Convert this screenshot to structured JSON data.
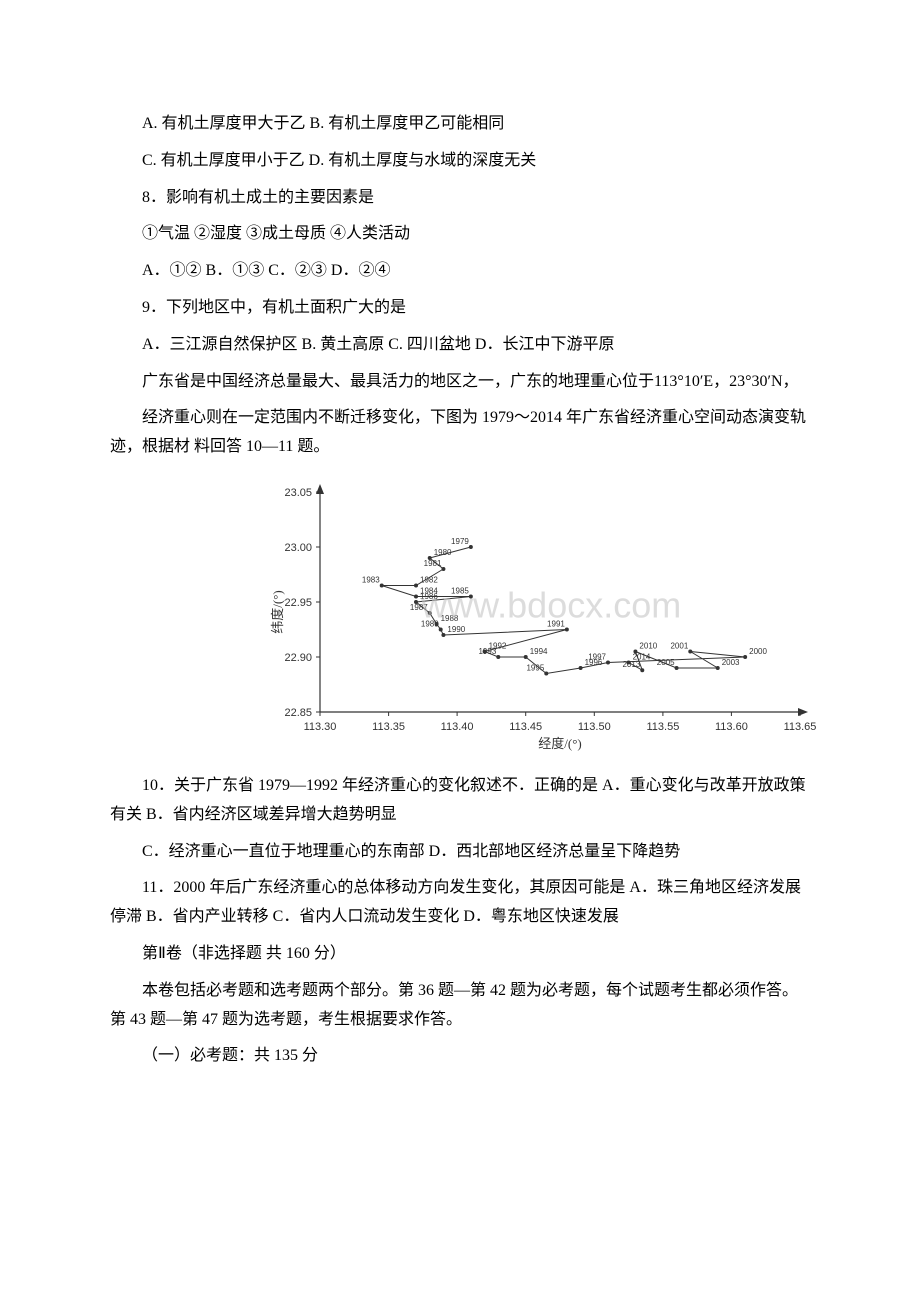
{
  "paragraphs": {
    "p1": "A. 有机土厚度甲大于乙 B. 有机土厚度甲乙可能相同",
    "p2": "C. 有机土厚度甲小于乙 D. 有机土厚度与水域的深度无关",
    "p3": "8．影响有机土成土的主要因素是",
    "p4": "①气温 ②湿度 ③成土母质 ④人类活动",
    "p5": "A．①② B．①③ C．②③ D．②④",
    "p6": "9．下列地区中，有机土面积广大的是",
    "p7": "A．三江源自然保护区 B. 黄土高原 C. 四川盆地 D．长江中下游平原",
    "p8": "广东省是中国经济总量最大、最具活力的地区之一，广东的地理重心位于113°10′E，23°30′N，",
    "p9": "经济重心则在一定范围内不断迁移变化，下图为 1979～2014 年广东省经济重心空间动态演变轨迹，根据材 料回答 10—11 题。",
    "p10": "10．关于广东省 1979—1992 年经济重心的变化叙述不．正确的是 A．重心变化与改革开放政策有关 B．省内经济区域差异增大趋势明显",
    "p11": "C．经济重心一直位于地理重心的东南部 D．西北部地区经济总量呈下降趋势",
    "p12": "11．2000 年后广东经济重心的总体移动方向发生变化，其原因可能是 A．珠三角地区经济发展停滞 B．省内产业转移 C．省内人口流动发生变化 D．粤东地区快速发展",
    "p13": "第Ⅱ卷（非选择题 共 160 分）",
    "p14": "本卷包括必考题和选考题两个部分。第 36 题—第 42 题为必考题，每个试题考生都必须作答。第 43 题—第 47 题为选考题，考生根据要求作答。",
    "p15": "（一）必考题：共 135 分"
  },
  "chart": {
    "type": "scatter-line",
    "xlabel": "经度/(°)",
    "ylabel": "纬度/(°)",
    "xlim": [
      113.3,
      113.65
    ],
    "ylim": [
      22.85,
      23.05
    ],
    "xticks": [
      "113.30",
      "113.35",
      "113.40",
      "113.45",
      "113.50",
      "113.55",
      "113.60",
      "113.65"
    ],
    "yticks": [
      "22.85",
      "22.90",
      "22.95",
      "23.00",
      "23.05"
    ],
    "axis_color": "#333333",
    "point_color": "#333333",
    "line_color": "#333333",
    "line_width": 1,
    "background_color": "#ffffff",
    "label_fontsize": 13,
    "tick_fontsize": 11,
    "point_label_fontsize": 8,
    "watermark": "www.bdocx.com",
    "watermark_color": "#c0c0c0",
    "points": [
      {
        "year": "1979",
        "x": 113.41,
        "y": 23.0
      },
      {
        "year": "1980",
        "x": 113.38,
        "y": 22.99
      },
      {
        "year": "1981",
        "x": 113.39,
        "y": 22.98
      },
      {
        "year": "1982",
        "x": 113.37,
        "y": 22.965
      },
      {
        "year": "1983",
        "x": 113.345,
        "y": 22.965
      },
      {
        "year": "1984",
        "x": 113.37,
        "y": 22.955
      },
      {
        "year": "1985",
        "x": 113.41,
        "y": 22.955
      },
      {
        "year": "1986",
        "x": 113.37,
        "y": 22.95
      },
      {
        "year": "1987",
        "x": 113.38,
        "y": 22.94
      },
      {
        "year": "1988",
        "x": 113.385,
        "y": 22.93
      },
      {
        "year": "1989",
        "x": 113.388,
        "y": 22.925
      },
      {
        "year": "1990",
        "x": 113.39,
        "y": 22.92
      },
      {
        "year": "1991",
        "x": 113.48,
        "y": 22.925
      },
      {
        "year": "1992",
        "x": 113.42,
        "y": 22.905
      },
      {
        "year": "1993",
        "x": 113.43,
        "y": 22.9
      },
      {
        "year": "1994",
        "x": 113.45,
        "y": 22.9
      },
      {
        "year": "1995",
        "x": 113.465,
        "y": 22.885
      },
      {
        "year": "1996",
        "x": 113.49,
        "y": 22.89
      },
      {
        "year": "1997",
        "x": 113.51,
        "y": 22.895
      },
      {
        "year": "2000",
        "x": 113.61,
        "y": 22.9
      },
      {
        "year": "2001",
        "x": 113.57,
        "y": 22.905
      },
      {
        "year": "2003",
        "x": 113.59,
        "y": 22.89
      },
      {
        "year": "2005",
        "x": 113.56,
        "y": 22.89
      },
      {
        "year": "2010",
        "x": 113.53,
        "y": 22.905
      },
      {
        "year": "2013",
        "x": 113.535,
        "y": 22.888
      },
      {
        "year": "2014",
        "x": 113.525,
        "y": 22.895
      }
    ]
  }
}
